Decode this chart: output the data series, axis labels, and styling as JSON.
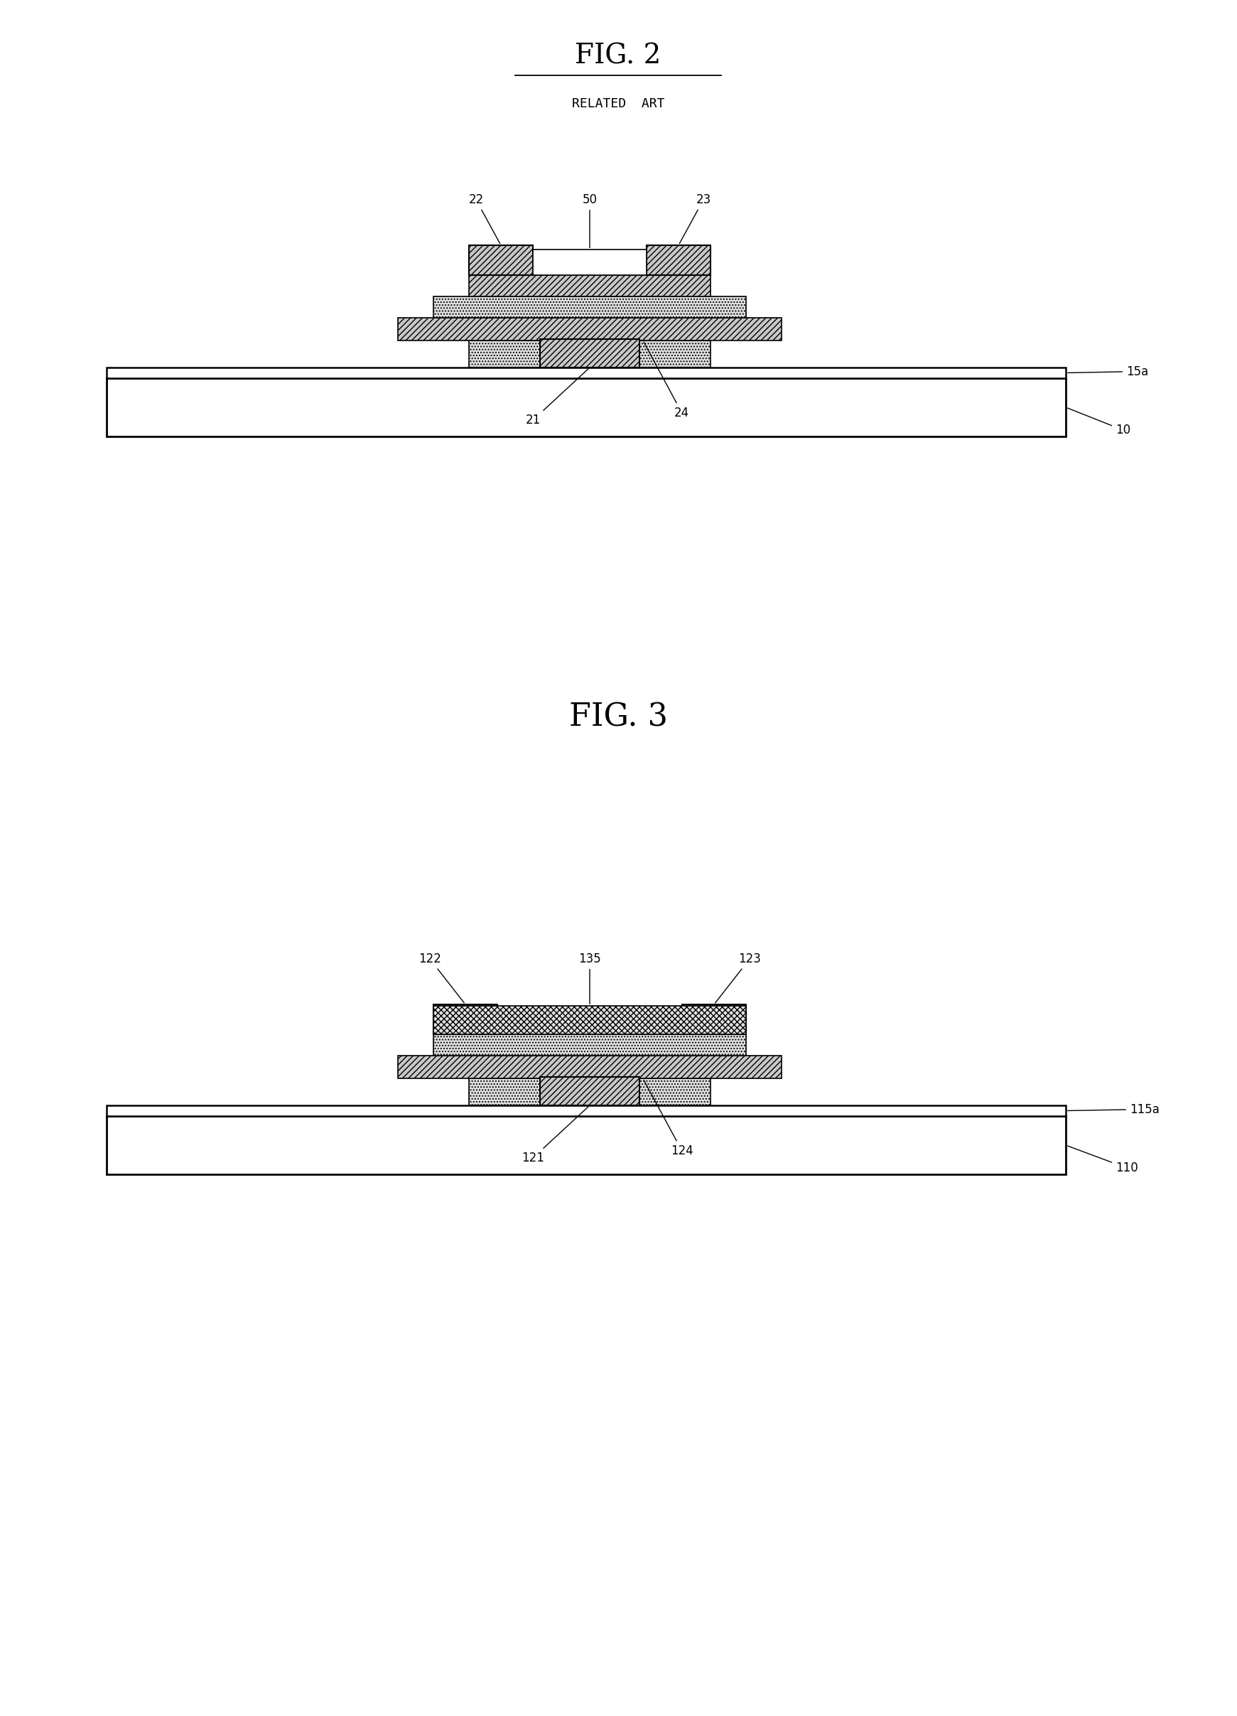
{
  "fig_width": 17.41,
  "fig_height": 24.14,
  "bg_color": "#ffffff",
  "fig2_title": "FIG. 2",
  "fig2_subtitle": "RELATED  ART",
  "fig3_title": "FIG. 3",
  "hatch_diag": "////",
  "hatch_dot": "....",
  "hatch_cross": "xxxx",
  "lc": "#000000",
  "fill_diag": "#c8c8c8",
  "fill_dot": "#e0e0e0",
  "fill_white": "#ffffff"
}
